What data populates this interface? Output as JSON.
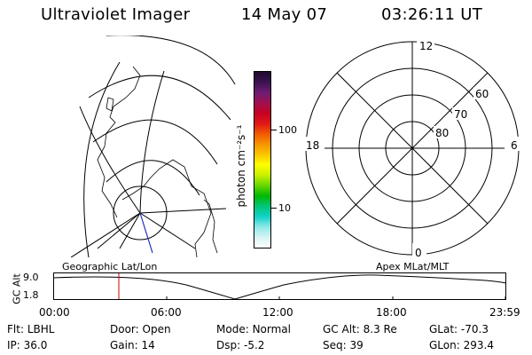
{
  "header": {
    "instrument": "Ultraviolet Imager",
    "date": "14 May 07",
    "time": "03:26:11 UT"
  },
  "colorbar": {
    "unit_label": "photon cm⁻²s⁻¹",
    "ticks": [
      "100",
      "10"
    ],
    "colors": [
      "#1e0b2b",
      "#3b1250",
      "#6e1c74",
      "#a0104f",
      "#c60023",
      "#e01717",
      "#f05a00",
      "#f79400",
      "#fbc600",
      "#ffff00",
      "#c8f000",
      "#66d600",
      "#00b800",
      "#00c67a",
      "#12d2c8",
      "#8fe8e8",
      "#d8f4f4",
      "#ffffff"
    ]
  },
  "polar_plot": {
    "mlt_labels": {
      "top": "12",
      "left": "18",
      "right": "6",
      "bottom": "0"
    },
    "lat_labels": [
      "60",
      "70",
      "80"
    ]
  },
  "timeseries": {
    "y_axis_label": "GC Alt",
    "y_ticks": [
      "9.0",
      "1.8"
    ],
    "left_label": "Geographic Lat/Lon",
    "right_label": "Apex MLat/MLT",
    "x_ticks": [
      "00:00",
      "06:00",
      "12:00",
      "18:00",
      "23:59"
    ],
    "marker_color": "#cc0000"
  },
  "info": {
    "row1": [
      {
        "key": "Flt:",
        "value": "LBHL"
      },
      {
        "key": "Door:",
        "value": "Open"
      },
      {
        "key": "Mode:",
        "value": "Normal"
      },
      {
        "key": "GC Alt:",
        "value": "8.3 Re"
      },
      {
        "key": "GLat:",
        "value": "-70.3"
      }
    ],
    "row2": [
      {
        "key": "IP:",
        "value": "36.0"
      },
      {
        "key": "Gain:",
        "value": "14"
      },
      {
        "key": "Dsp:",
        "value": "-5.2"
      },
      {
        "key": "Seq:",
        "value": "39"
      },
      {
        "key": "GLon:",
        "value": "293.4"
      }
    ]
  }
}
